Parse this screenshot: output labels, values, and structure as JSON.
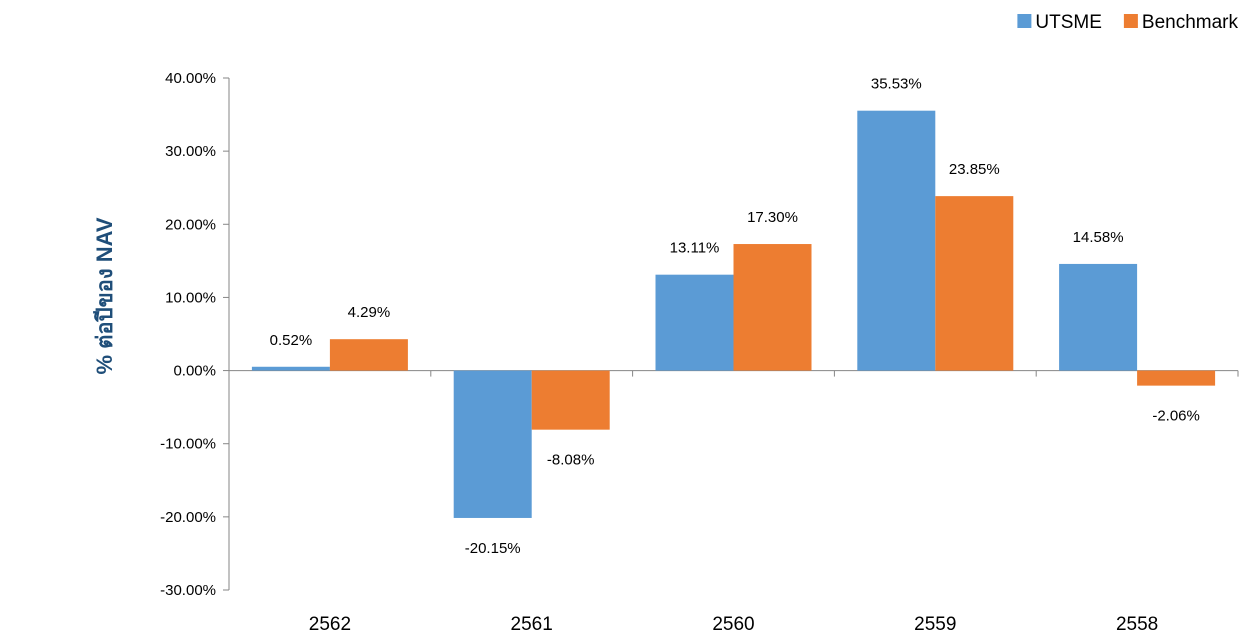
{
  "chart_data": {
    "type": "bar",
    "ylabel": "% ต่อปีของ NAV",
    "categories": [
      "2562",
      "2561",
      "2560",
      "2559",
      "2558"
    ],
    "series": [
      {
        "name": "UTSME",
        "color": "#5b9bd5",
        "values": [
          0.52,
          -20.15,
          13.11,
          35.53,
          14.58
        ],
        "labels": [
          "0.52%",
          "-20.15%",
          "13.11%",
          "35.53%",
          "14.58%"
        ]
      },
      {
        "name": "Benchmark",
        "color": "#ed7d31",
        "values": [
          4.29,
          -8.08,
          17.3,
          23.85,
          -2.06
        ],
        "labels": [
          "4.29%",
          "-8.08%",
          "17.30%",
          "23.85%",
          "-2.06%"
        ]
      }
    ],
    "ylim": [
      -30,
      40
    ],
    "yticks": [
      40,
      30,
      20,
      10,
      0,
      -10,
      -20,
      -30
    ],
    "ytick_labels": [
      "40.00%",
      "30.00%",
      "20.00%",
      "10.00%",
      "0.00%",
      "-10.00%",
      "-20.00%",
      "-30.00%"
    ],
    "grid": false,
    "legend_position": "top-right"
  }
}
